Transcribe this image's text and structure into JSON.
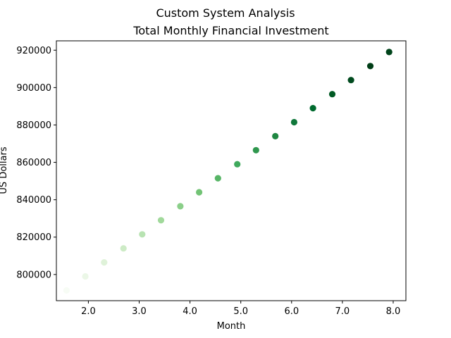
{
  "chart_data": {
    "type": "scatter",
    "suptitle": "Custom System Analysis",
    "title": "Total Monthly Financial Investment",
    "xlabel": "Month",
    "ylabel": "US Dollars",
    "xlim": [
      1.37,
      8.25
    ],
    "ylim": [
      786000,
      925000
    ],
    "xticks": [
      2.0,
      3.0,
      4.0,
      5.0,
      6.0,
      7.0,
      8.0
    ],
    "xtick_labels": [
      "2.0",
      "3.0",
      "4.0",
      "5.0",
      "6.0",
      "7.0",
      "8.0"
    ],
    "yticks": [
      800000,
      820000,
      840000,
      860000,
      880000,
      900000,
      920000
    ],
    "ytick_labels": [
      "800000",
      "820000",
      "840000",
      "860000",
      "880000",
      "900000",
      "920000"
    ],
    "grid": false,
    "colormap": "Greens",
    "series": [
      {
        "x": [
          1.57,
          1.94,
          2.31,
          2.69,
          3.06,
          3.43,
          3.81,
          4.18,
          4.55,
          4.93,
          5.3,
          5.68,
          6.05,
          6.42,
          6.8,
          7.17,
          7.55,
          7.92
        ],
        "y": [
          791500,
          799000,
          806500,
          814000,
          821500,
          829000,
          836500,
          844000,
          851500,
          859000,
          866500,
          874000,
          881500,
          889000,
          896500,
          904000,
          911500,
          919000
        ],
        "colors": [
          "#f7fcf5",
          "#ebf7e7",
          "#dff2d9",
          "#cdebc6",
          "#b8e3b2",
          "#a1d99b",
          "#8bcf89",
          "#72c375",
          "#57b566",
          "#3fa95c",
          "#2f974e",
          "#1f8742",
          "#10783b",
          "#006a2e",
          "#005a24",
          "#004a1e",
          "#003d16",
          "#00441b"
        ]
      }
    ]
  }
}
